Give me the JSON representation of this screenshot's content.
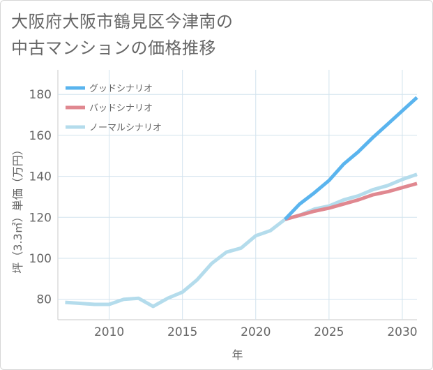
{
  "title": "大阪府大阪市鶴見区今津南の\n中古マンションの価格推移",
  "chart_data": {
    "type": "line",
    "xlabel": "年",
    "ylabel": "坪（3.3㎡）単価（万円）",
    "xlim": [
      2006.5,
      2031
    ],
    "ylim": [
      70,
      192
    ],
    "xticks": [
      2010,
      2015,
      2020,
      2025,
      2030
    ],
    "yticks": [
      80,
      100,
      120,
      140,
      160,
      180
    ],
    "grid": true,
    "legend_position": "top-left",
    "series": [
      {
        "name": "グッドシナリオ",
        "color": "#5ab4ee",
        "x": [
          2022,
          2023,
          2024,
          2025,
          2026,
          2027,
          2028,
          2029,
          2030,
          2031
        ],
        "y": [
          119,
          126.5,
          132,
          138,
          146,
          152,
          159,
          165.5,
          172,
          178.5
        ]
      },
      {
        "name": "バッドシナリオ",
        "color": "#e08890",
        "x": [
          2022,
          2023,
          2024,
          2025,
          2026,
          2027,
          2028,
          2029,
          2030,
          2031
        ],
        "y": [
          119,
          121,
          123,
          124.5,
          126.5,
          128.5,
          131,
          132.5,
          134.5,
          136.5
        ]
      },
      {
        "name": "ノーマルシナリオ",
        "color": "#b4dcec",
        "x": [
          2007,
          2008,
          2009,
          2010,
          2011,
          2012,
          2013,
          2014,
          2015,
          2016,
          2017,
          2018,
          2019,
          2020,
          2021,
          2022,
          2023,
          2024,
          2025,
          2026,
          2027,
          2028,
          2029,
          2030,
          2031
        ],
        "y": [
          78.5,
          78,
          77.5,
          77.5,
          80,
          80.5,
          76.5,
          80.5,
          83.5,
          89.5,
          97.5,
          103,
          105,
          111,
          113.5,
          119,
          121,
          124,
          125.5,
          128.5,
          130.5,
          133.5,
          135.5,
          138.5,
          141
        ]
      }
    ]
  }
}
